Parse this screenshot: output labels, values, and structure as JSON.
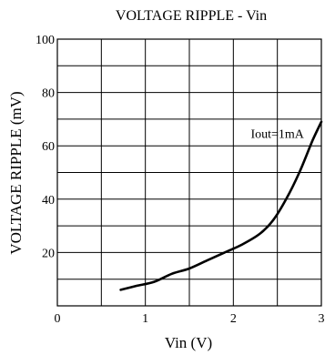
{
  "chart_data": {
    "type": "line",
    "title": "VOLTAGE RIPPLE - Vin",
    "xlabel": "Vin (V)",
    "ylabel": "VOLTAGE RIPPLE (mV)",
    "xlim": [
      0,
      3
    ],
    "ylim": [
      0,
      100
    ],
    "x_ticks": [
      0,
      1,
      2,
      3
    ],
    "y_ticks": [
      20,
      40,
      60,
      80,
      100
    ],
    "x_tick_labels": [
      "0",
      "1",
      "2",
      "3"
    ],
    "y_tick_labels": [
      "20",
      "40",
      "60",
      "80",
      "100"
    ],
    "x_grid_step": 0.5,
    "y_grid_step": 10,
    "grid": true,
    "annotation": "Iout=1mA",
    "annotation_at": [
      2.5,
      63
    ],
    "series": [
      {
        "x": [
          0.72,
          0.9,
          1.1,
          1.3,
          1.5,
          1.7,
          1.9,
          2.1,
          2.3,
          2.45,
          2.6,
          2.75,
          2.9,
          3.0
        ],
        "y": [
          6,
          7.5,
          9,
          12,
          14,
          17,
          20,
          23,
          27,
          32,
          40,
          50,
          62,
          69
        ]
      }
    ]
  }
}
